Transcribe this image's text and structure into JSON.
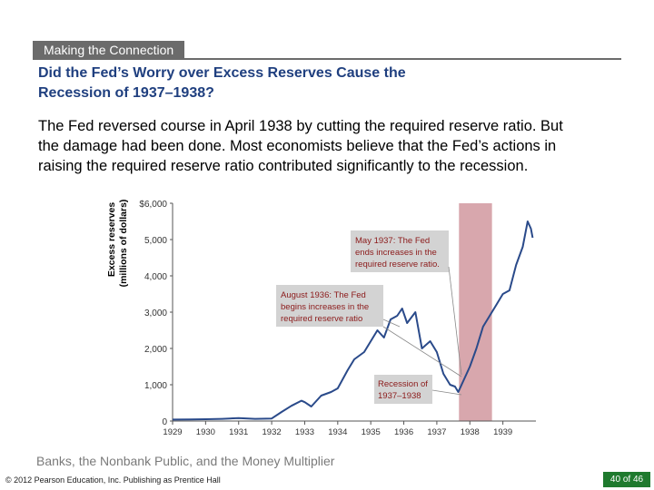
{
  "header": {
    "tab_label": "Making the Connection"
  },
  "title": {
    "line1": "Did the Fed’s Worry over Excess Reserves Cause the",
    "line2": "Recession of 1937–1938?"
  },
  "body": {
    "line1": "The Fed reversed course in April 1938 by cutting the required reserve ratio. But",
    "line2": "the damage had been done. Most economists believe that the Fed’s actions in",
    "line3": "raising the required reserve ratio contributed significantly to the recession."
  },
  "chart_data": {
    "type": "line",
    "ylabel_line1": "Excess reserves",
    "ylabel_line2": "(millions of dollars)",
    "ylim": [
      0,
      6000
    ],
    "yticks": [
      {
        "value": 6000,
        "label": "$6,000"
      },
      {
        "value": 5000,
        "label": "5,000"
      },
      {
        "value": 4000,
        "label": "4,000"
      },
      {
        "value": 3000,
        "label": "3,000"
      },
      {
        "value": 2000,
        "label": "2,000"
      },
      {
        "value": 1000,
        "label": "1,000"
      },
      {
        "value": 0,
        "label": "0"
      }
    ],
    "xlim": [
      1929,
      1940
    ],
    "xticks": [
      "1929",
      "1930",
      "1931",
      "1932",
      "1933",
      "1934",
      "1935",
      "1936",
      "1937",
      "1938",
      "1939"
    ],
    "recession_band": [
      1937.67,
      1938.67
    ],
    "series": [
      {
        "name": "Excess reserves",
        "points": [
          [
            1929.0,
            40
          ],
          [
            1929.5,
            45
          ],
          [
            1930.0,
            50
          ],
          [
            1930.5,
            60
          ],
          [
            1931.0,
            80
          ],
          [
            1931.5,
            60
          ],
          [
            1932.0,
            70
          ],
          [
            1932.3,
            250
          ],
          [
            1932.6,
            420
          ],
          [
            1932.9,
            560
          ],
          [
            1933.0,
            520
          ],
          [
            1933.2,
            400
          ],
          [
            1933.5,
            700
          ],
          [
            1933.8,
            800
          ],
          [
            1934.0,
            900
          ],
          [
            1934.3,
            1400
          ],
          [
            1934.5,
            1700
          ],
          [
            1934.8,
            1900
          ],
          [
            1935.0,
            2200
          ],
          [
            1935.2,
            2500
          ],
          [
            1935.4,
            2300
          ],
          [
            1935.6,
            2800
          ],
          [
            1935.8,
            2900
          ],
          [
            1935.95,
            3100
          ],
          [
            1936.1,
            2700
          ],
          [
            1936.35,
            3000
          ],
          [
            1936.55,
            2000
          ],
          [
            1936.8,
            2200
          ],
          [
            1937.0,
            1900
          ],
          [
            1937.2,
            1300
          ],
          [
            1937.4,
            1000
          ],
          [
            1937.55,
            950
          ],
          [
            1937.65,
            800
          ],
          [
            1937.8,
            1100
          ],
          [
            1938.0,
            1500
          ],
          [
            1938.2,
            2000
          ],
          [
            1938.4,
            2600
          ],
          [
            1938.6,
            2900
          ],
          [
            1938.8,
            3200
          ],
          [
            1939.0,
            3500
          ],
          [
            1939.2,
            3600
          ],
          [
            1939.4,
            4300
          ],
          [
            1939.6,
            4800
          ],
          [
            1939.75,
            5500
          ],
          [
            1939.85,
            5300
          ],
          [
            1939.9,
            5050
          ]
        ]
      }
    ],
    "annotations": [
      {
        "id": "may-1937",
        "line1": "May 1937: The Fed",
        "line2": "ends increases in the",
        "line3": "required reserve ratio."
      },
      {
        "id": "aug-1936",
        "line1": "August 1936: The Fed",
        "line2": "begins increases in the",
        "line3": "required reserve ratio"
      },
      {
        "id": "recession",
        "line1": "Recession of",
        "line2": "1937–1938"
      }
    ]
  },
  "caption": "Banks, the Nonbank Public, and the Money Multiplier",
  "footer": {
    "copyright": "© 2012 Pearson Education, Inc. Publishing as Prentice Hall",
    "page_label": "40 of 46"
  },
  "colors": {
    "band": "#d8a7ad",
    "line": "#2a4a8a",
    "box": "#d3d3d3",
    "box_text": "#8b1a1a"
  }
}
